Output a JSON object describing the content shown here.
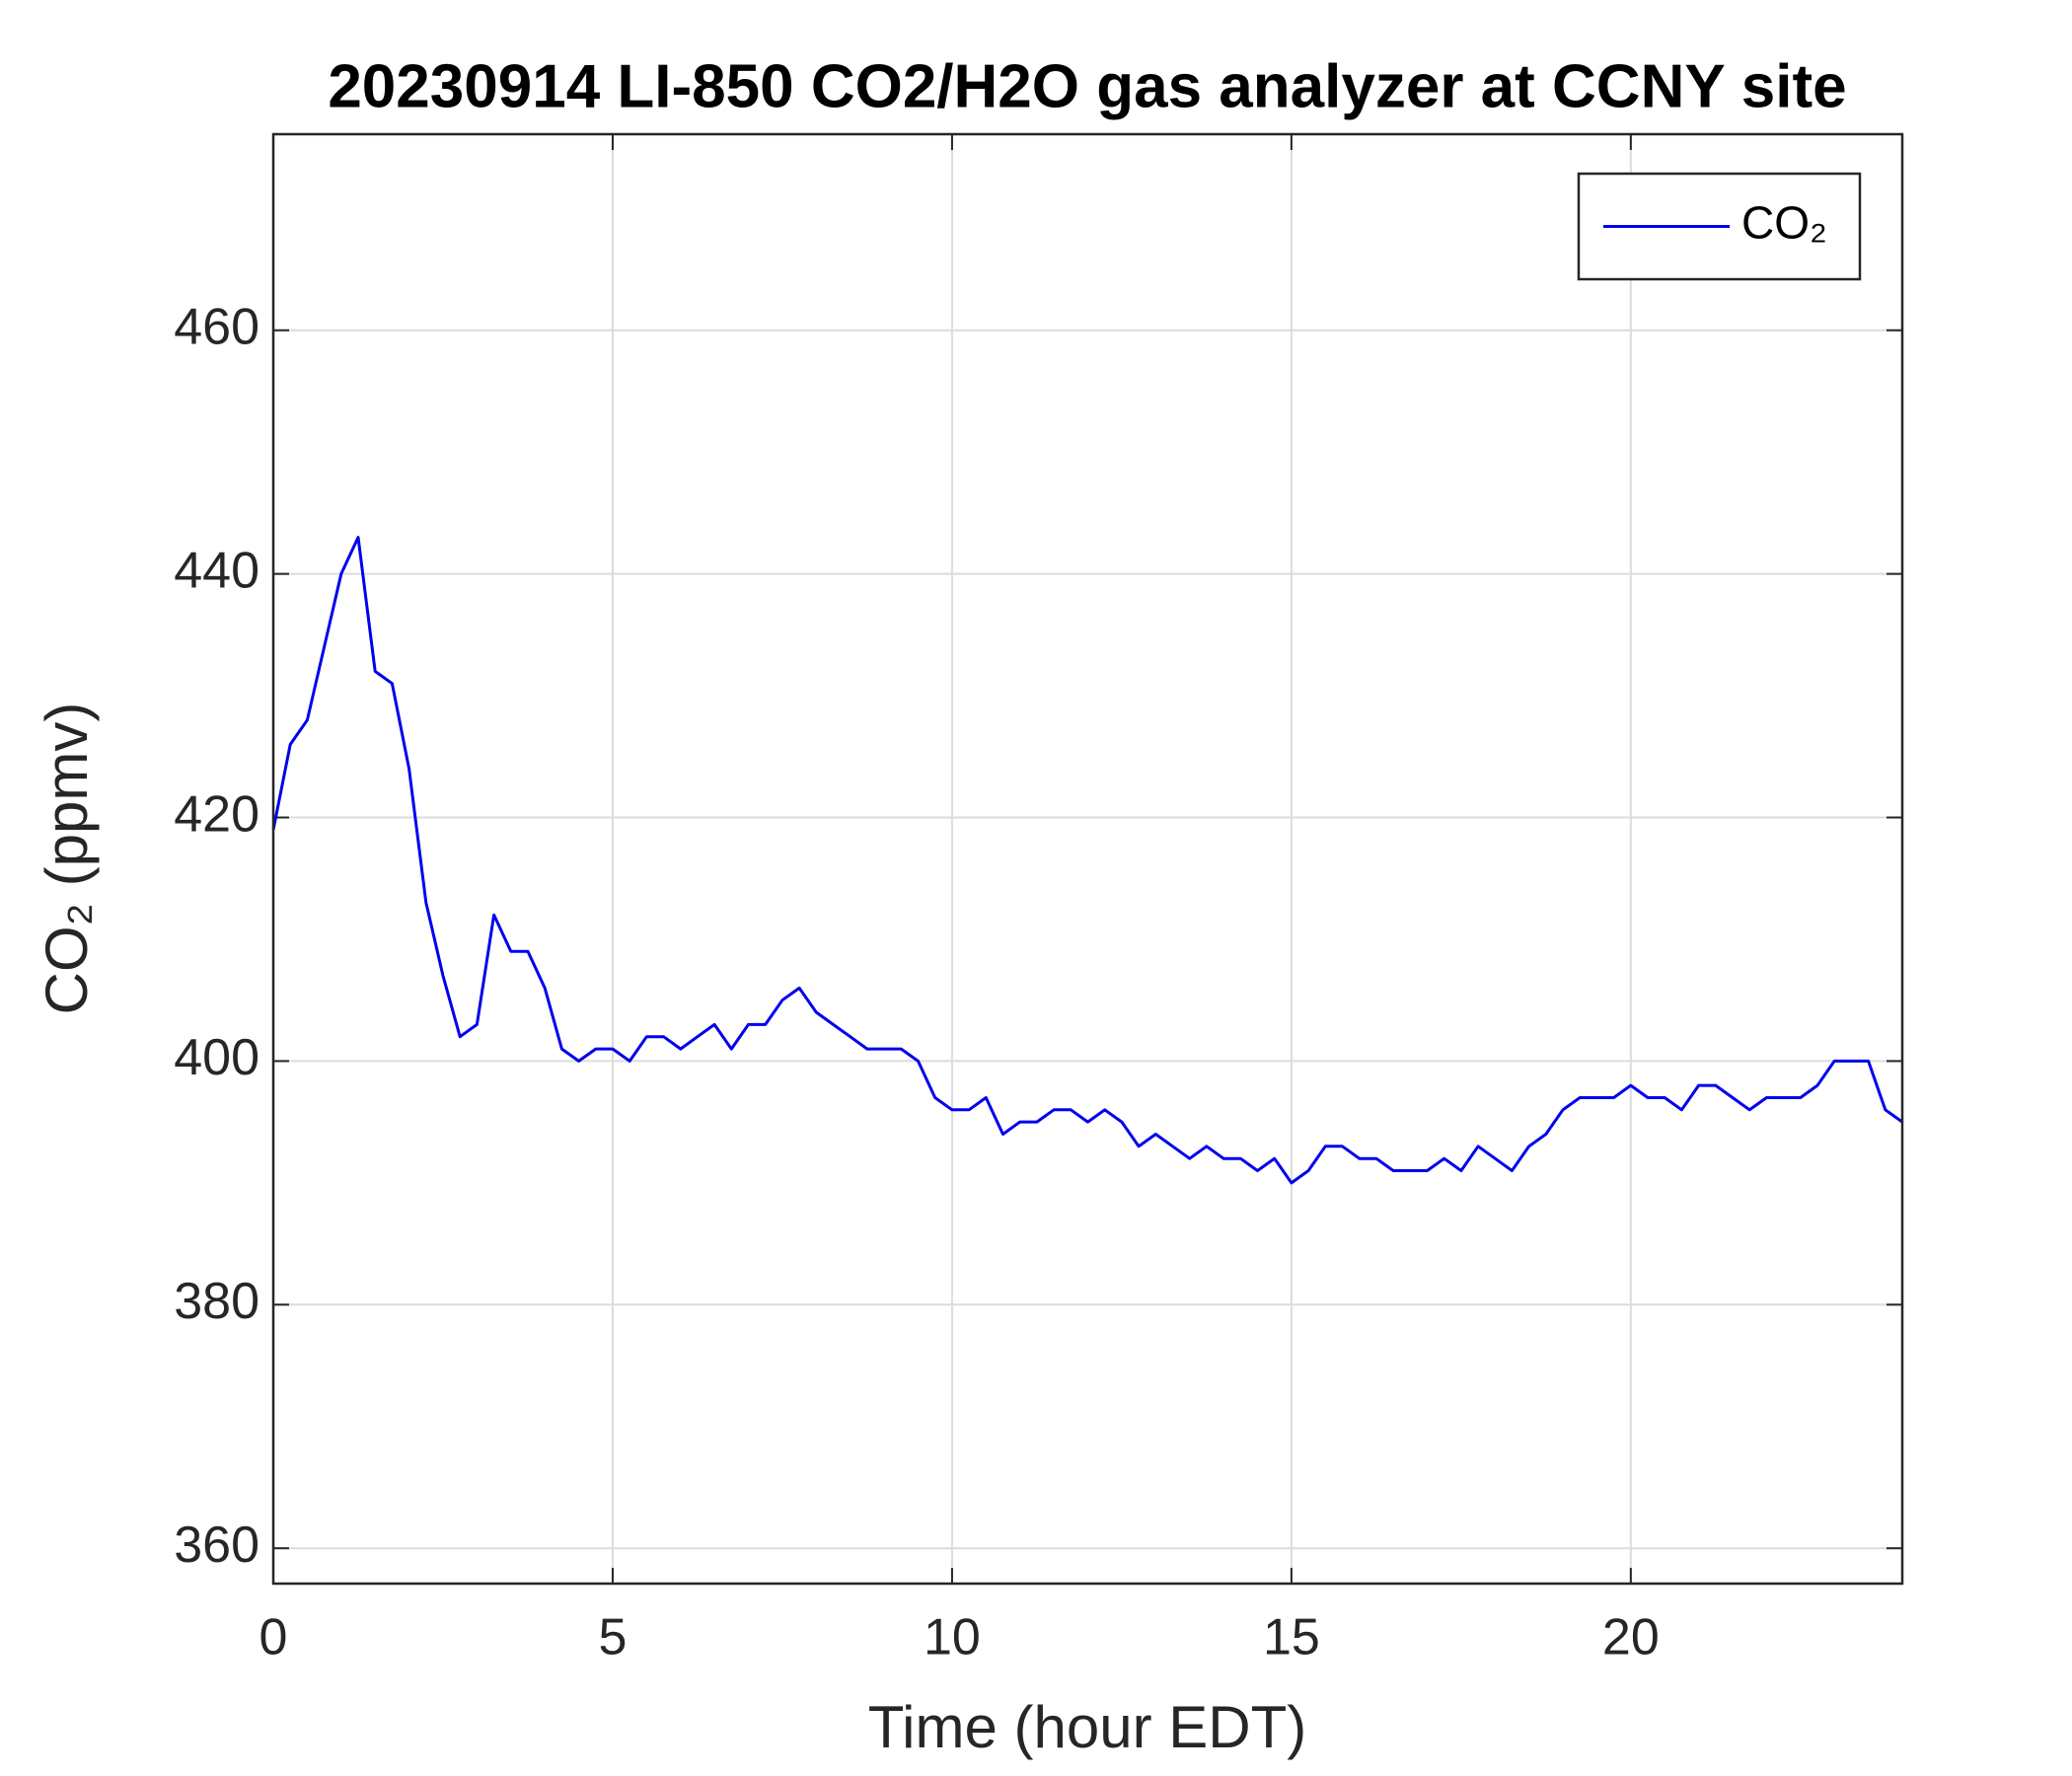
{
  "chart_data": {
    "type": "line",
    "title": "20230914 LI-850 CO2/H2O gas analyzer at CCNY site",
    "xlabel": "Time (hour EDT)",
    "ylabel": "CO₂ (ppmv)",
    "x": [
      0,
      0.25,
      0.5,
      0.75,
      1,
      1.25,
      1.5,
      1.75,
      2,
      2.25,
      2.5,
      2.75,
      3,
      3.25,
      3.5,
      3.75,
      4,
      4.25,
      4.5,
      4.75,
      5,
      5.25,
      5.5,
      5.75,
      6,
      6.25,
      6.5,
      6.75,
      7,
      7.25,
      7.5,
      7.75,
      8,
      8.25,
      8.5,
      8.75,
      9,
      9.25,
      9.5,
      9.75,
      10,
      10.25,
      10.5,
      10.75,
      11,
      11.25,
      11.5,
      11.75,
      12,
      12.25,
      12.5,
      12.75,
      13,
      13.25,
      13.5,
      13.75,
      14,
      14.25,
      14.5,
      14.75,
      15,
      15.25,
      15.5,
      15.75,
      16,
      16.25,
      16.5,
      16.75,
      17,
      17.25,
      17.5,
      17.75,
      18,
      18.25,
      18.5,
      18.75,
      19,
      19.25,
      19.5,
      19.75,
      20,
      20.25,
      20.5,
      20.75,
      21,
      21.25,
      21.5,
      21.75,
      22,
      22.25,
      22.5,
      22.75,
      23,
      23.25,
      23.5,
      23.75,
      24
    ],
    "series": [
      {
        "name": "CO₂",
        "color": "#0000ee",
        "values": [
          419,
          426,
          428,
          434,
          440,
          443,
          432,
          431,
          424,
          413,
          407,
          402,
          403,
          412,
          409,
          409,
          406,
          401,
          400,
          401,
          401,
          400,
          402,
          402,
          401,
          402,
          403,
          401,
          403,
          403,
          405,
          406,
          404,
          403,
          402,
          401,
          401,
          401,
          400,
          397,
          396,
          396,
          397,
          394,
          395,
          395,
          396,
          396,
          395,
          396,
          395,
          393,
          394,
          393,
          392,
          393,
          392,
          392,
          391,
          392,
          390,
          391,
          393,
          393,
          392,
          392,
          391,
          391,
          391,
          392,
          391,
          393,
          392,
          391,
          393,
          394,
          396,
          397,
          397,
          397,
          398,
          397,
          397,
          396,
          398,
          398,
          397,
          396,
          397,
          397,
          397,
          398,
          400,
          400,
          400,
          396,
          395
        ]
      }
    ],
    "xlim": [
      0,
      24
    ],
    "xticks": [
      0,
      5,
      10,
      15,
      20
    ],
    "ylim": [
      357.1,
      476.1
    ],
    "yticks": [
      360,
      380,
      400,
      420,
      440,
      460
    ],
    "grid": true,
    "legend": "northeast"
  }
}
